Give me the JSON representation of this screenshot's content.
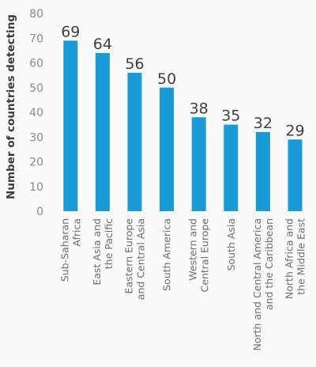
{
  "chart_data": {
    "type": "bar",
    "title": "",
    "xlabel": "",
    "ylabel": "Number of countries detecting",
    "ylim": [
      0,
      80
    ],
    "yticks": [
      0,
      10,
      20,
      30,
      40,
      50,
      60,
      70,
      80
    ],
    "grid": false,
    "legend": "none",
    "bar_color": "#1a9ad6",
    "categories": [
      [
        "Sub-Saharan",
        "Africa"
      ],
      [
        "East Asia and",
        "the Pacific"
      ],
      [
        "Eastern Europe",
        "and Central Asia"
      ],
      [
        "South America"
      ],
      [
        "Western and",
        "Central Europe"
      ],
      [
        "South Asia"
      ],
      [
        "North and Central America",
        "and the Caribbean"
      ],
      [
        "North Africa and",
        "the Middle East"
      ]
    ],
    "values": [
      69,
      64,
      56,
      50,
      38,
      35,
      32,
      29
    ]
  }
}
